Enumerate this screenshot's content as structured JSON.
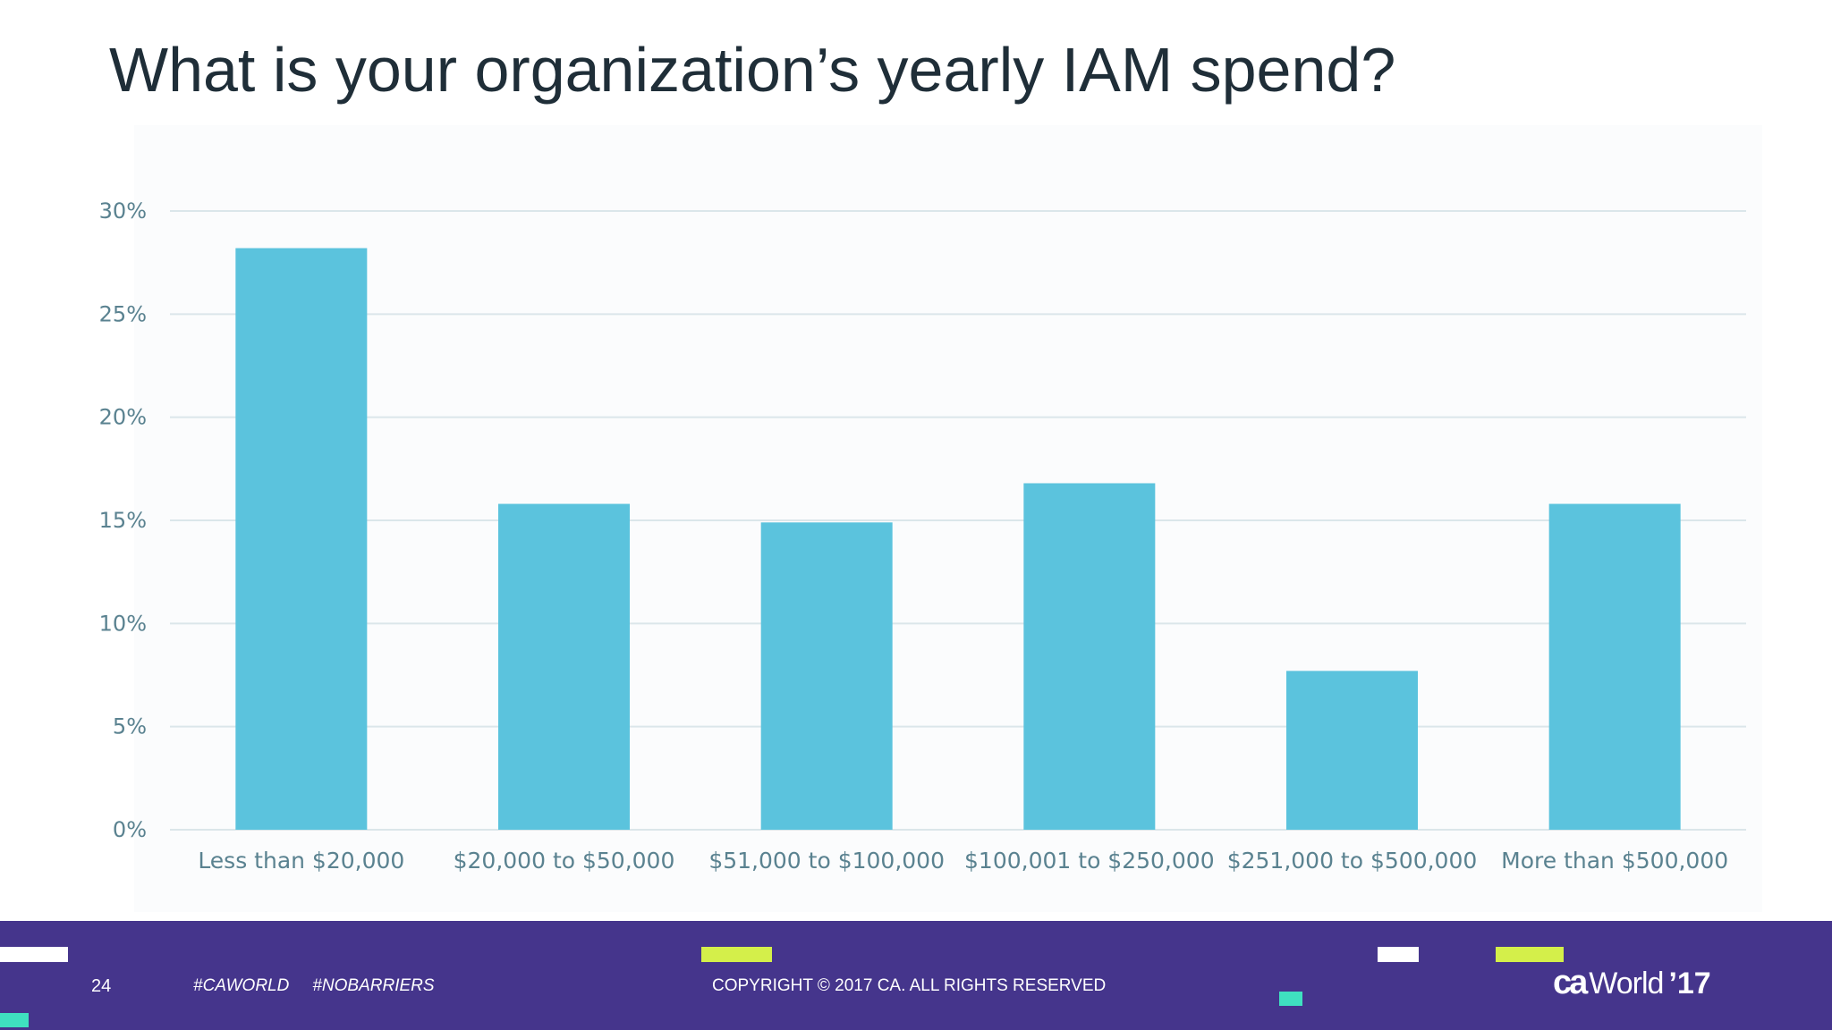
{
  "slide": {
    "title": "What is your organization’s yearly IAM spend?"
  },
  "chart_data": {
    "type": "bar",
    "title": "",
    "xlabel": "",
    "ylabel": "",
    "categories": [
      "Less than $20,000",
      "$20,000 to $50,000",
      "$51,000 to $100,000",
      "$100,001 to $250,000",
      "$251,000 to $500,000",
      "More than $500,000"
    ],
    "values": [
      28.2,
      15.8,
      14.9,
      16.8,
      7.7,
      15.8
    ],
    "ylim": [
      0,
      30
    ],
    "yticks": [
      0,
      5,
      10,
      15,
      20,
      25,
      30
    ],
    "ytick_labels": [
      "0%",
      "5%",
      "10%",
      "15%",
      "20%",
      "25%",
      "30%"
    ],
    "grid": true,
    "bar_color": "#5bc3dd",
    "grid_color": "#dbe6ea"
  },
  "footer": {
    "page_number": "24",
    "hashtags": [
      "#CAWORLD",
      "#NOBARRIERS"
    ],
    "copyright": "COPYRIGHT © 2017 CA. ALL RIGHTS RESERVED",
    "logo": {
      "brand": "ca",
      "word": "World",
      "year": "’17"
    },
    "background_color": "#45358c",
    "accent_colors": [
      "#ffffff",
      "#d4ef4a",
      "#3fe0c0"
    ]
  }
}
